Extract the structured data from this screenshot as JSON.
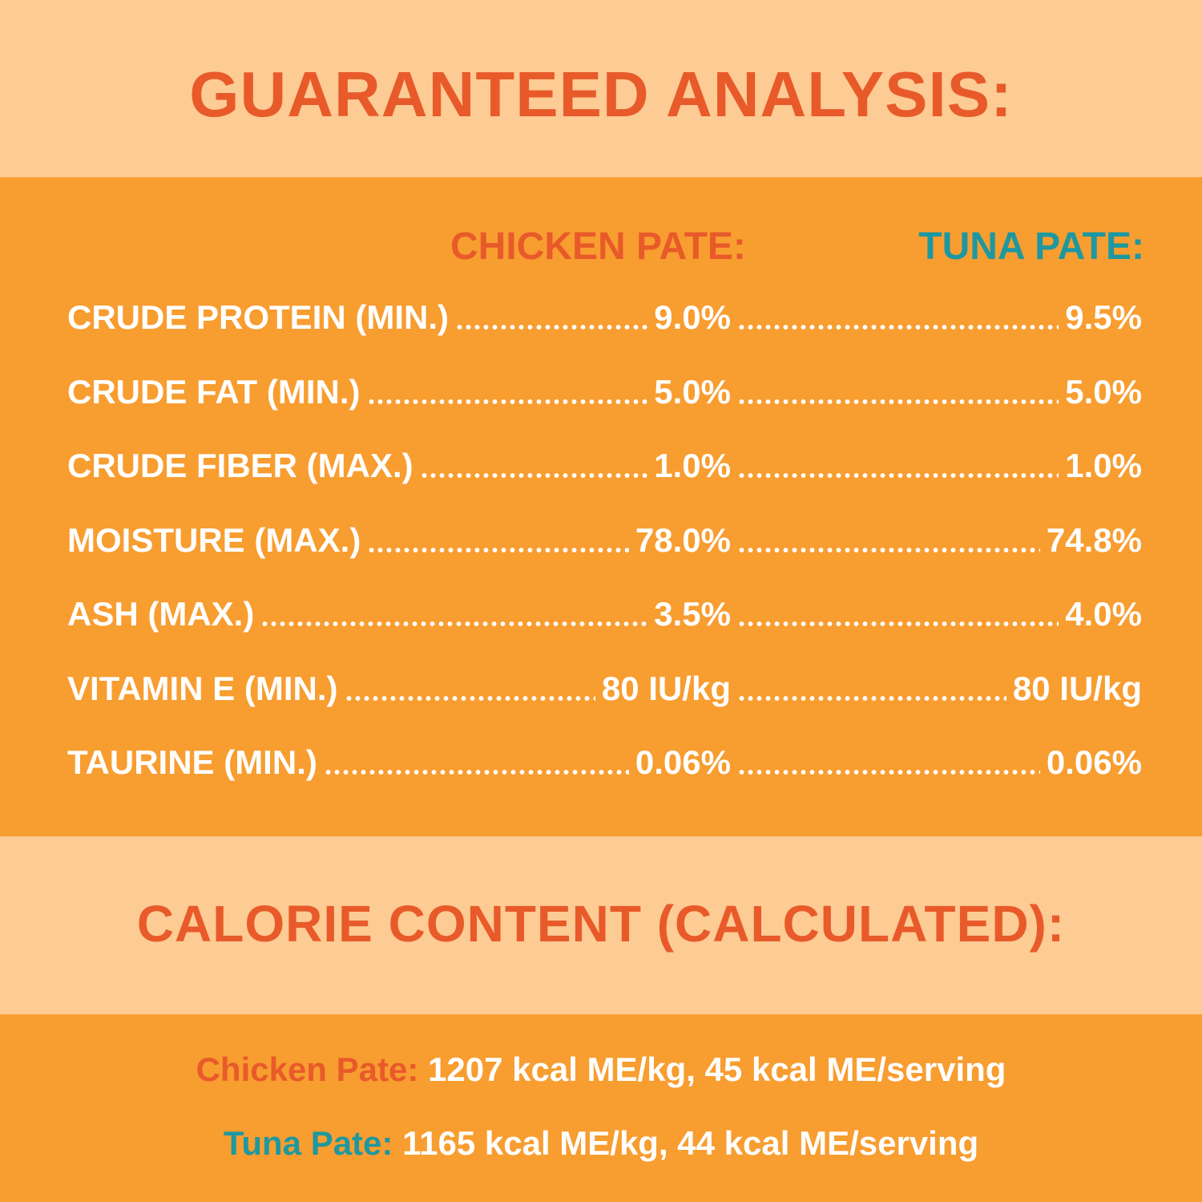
{
  "colors": {
    "peach": "#FDCB94",
    "orange": "#F89D30",
    "title_red": "#E85A2A",
    "teal": "#1E98A0",
    "white": "#FFFFFF"
  },
  "title": "GUARANTEED ANALYSIS:",
  "columns": {
    "chicken": "CHICKEN PATE:",
    "tuna": "TUNA PATE:"
  },
  "rows": [
    {
      "label": "CRUDE PROTEIN (MIN.)",
      "chicken": "9.0%",
      "tuna": "9.5%"
    },
    {
      "label": "CRUDE FAT (MIN.)",
      "chicken": "5.0%",
      "tuna": "5.0%"
    },
    {
      "label": "CRUDE FIBER (MAX.)",
      "chicken": "1.0%",
      "tuna": "1.0%"
    },
    {
      "label": "MOISTURE (MAX.)",
      "chicken": "78.0%",
      "tuna": "74.8%"
    },
    {
      "label": "ASH (MAX.)",
      "chicken": "3.5%",
      "tuna": "4.0%"
    },
    {
      "label": "VITAMIN E (MIN.)",
      "chicken": "80 IU/kg",
      "tuna": "80 IU/kg"
    },
    {
      "label": "TAURINE (MIN.)",
      "chicken": "0.06%",
      "tuna": "0.06%"
    }
  ],
  "calorie": {
    "title": "CALORIE CONTENT (CALCULATED):",
    "chicken_label": "Chicken Pate:",
    "chicken_value": "1207 kcal ME/kg, 45 kcal ME/serving",
    "tuna_label": "Tuna Pate:",
    "tuna_value": "1165 kcal ME/kg, 44 kcal ME/serving"
  }
}
